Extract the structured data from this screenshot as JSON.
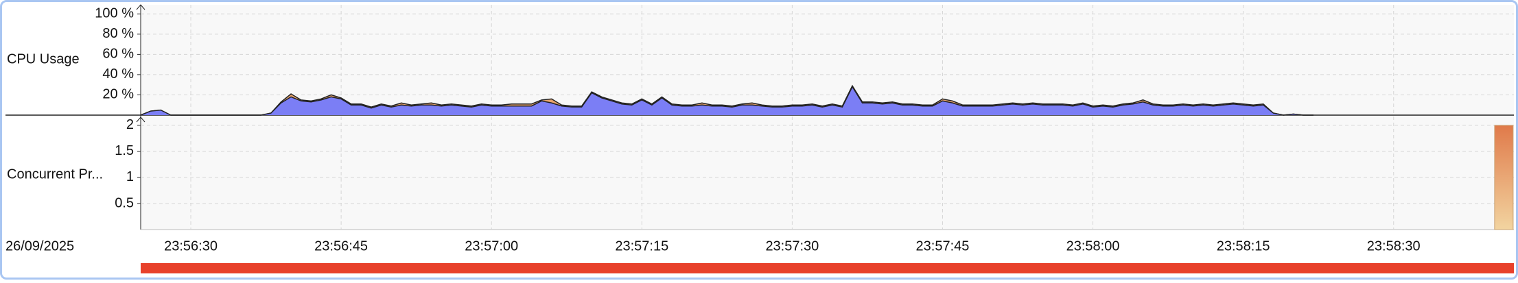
{
  "chart_data": [
    {
      "type": "area",
      "ylabel": "CPU Usage",
      "stacked": true,
      "grid": true,
      "x": [
        "23:56:25",
        "23:56:26",
        "23:56:27",
        "23:56:28",
        "23:56:29",
        "23:56:30",
        "23:56:31",
        "23:56:32",
        "23:56:33",
        "23:56:34",
        "23:56:35",
        "23:56:36",
        "23:56:37",
        "23:56:38",
        "23:56:39",
        "23:56:40",
        "23:56:41",
        "23:56:42",
        "23:56:43",
        "23:56:44",
        "23:56:45",
        "23:56:46",
        "23:56:47",
        "23:56:48",
        "23:56:49",
        "23:56:50",
        "23:56:51",
        "23:56:52",
        "23:56:53",
        "23:56:54",
        "23:56:55",
        "23:56:56",
        "23:56:57",
        "23:56:58",
        "23:56:59",
        "23:57:00",
        "23:57:01",
        "23:57:02",
        "23:57:03",
        "23:57:04",
        "23:57:05",
        "23:57:06",
        "23:57:07",
        "23:57:08",
        "23:57:09",
        "23:57:10",
        "23:57:11",
        "23:57:12",
        "23:57:13",
        "23:57:14",
        "23:57:15",
        "23:57:16",
        "23:57:17",
        "23:57:18",
        "23:57:19",
        "23:57:20",
        "23:57:21",
        "23:57:22",
        "23:57:23",
        "23:57:24",
        "23:57:25",
        "23:57:26",
        "23:57:27",
        "23:57:28",
        "23:57:29",
        "23:57:30",
        "23:57:31",
        "23:57:32",
        "23:57:33",
        "23:57:34",
        "23:57:35",
        "23:57:36",
        "23:57:37",
        "23:57:38",
        "23:57:39",
        "23:57:40",
        "23:57:41",
        "23:57:42",
        "23:57:43",
        "23:57:44",
        "23:57:45",
        "23:57:46",
        "23:57:47",
        "23:57:48",
        "23:57:49",
        "23:57:50",
        "23:57:51",
        "23:57:52",
        "23:57:53",
        "23:57:54",
        "23:57:55",
        "23:57:56",
        "23:57:57",
        "23:57:58",
        "23:57:59",
        "23:58:00",
        "23:58:01",
        "23:58:02",
        "23:58:03",
        "23:58:04",
        "23:58:05",
        "23:58:06",
        "23:58:07",
        "23:58:08",
        "23:58:09",
        "23:58:10",
        "23:58:11",
        "23:58:12",
        "23:58:13",
        "23:58:14",
        "23:58:15",
        "23:58:16",
        "23:58:17",
        "23:58:18",
        "23:58:19",
        "23:58:20",
        "23:58:21",
        "23:58:22"
      ],
      "series": [
        {
          "color": "#7b7ef5",
          "values": [
            0,
            4,
            5,
            0,
            0,
            0,
            0,
            0,
            0,
            0,
            0,
            0,
            0,
            2,
            12,
            18,
            14,
            13,
            15,
            18,
            16,
            10,
            10,
            7,
            10,
            8,
            10,
            9,
            10,
            10,
            9,
            10,
            9,
            8,
            10,
            9,
            9,
            9,
            9,
            9,
            14,
            12,
            9,
            8,
            8,
            22,
            17,
            14,
            11,
            10,
            15,
            10,
            17,
            10,
            9,
            9,
            10,
            9,
            9,
            8,
            10,
            10,
            9,
            8,
            8,
            9,
            9,
            10,
            8,
            10,
            8,
            28,
            12,
            12,
            11,
            12,
            10,
            10,
            9,
            9,
            14,
            12,
            9,
            9,
            9,
            9,
            10,
            11,
            10,
            11,
            10,
            10,
            10,
            9,
            11,
            8,
            9,
            8,
            10,
            11,
            13,
            10,
            9,
            9,
            10,
            9,
            10,
            9,
            10,
            11,
            10,
            9,
            10,
            2,
            0,
            1,
            0,
            0
          ]
        },
        {
          "color": "#e8a46c",
          "values": [
            0,
            0,
            0,
            0,
            0,
            0,
            0,
            0,
            0,
            0,
            0,
            0,
            0,
            0,
            1,
            3,
            1,
            1,
            1,
            2,
            1,
            1,
            1,
            1,
            1,
            1,
            2,
            1,
            1,
            2,
            1,
            1,
            1,
            1,
            1,
            1,
            1,
            2,
            2,
            2,
            1,
            4,
            1,
            1,
            1,
            1,
            1,
            1,
            1,
            1,
            1,
            1,
            1,
            1,
            1,
            1,
            2,
            1,
            1,
            1,
            1,
            2,
            1,
            1,
            1,
            1,
            1,
            1,
            1,
            1,
            1,
            1,
            1,
            1,
            1,
            1,
            1,
            1,
            1,
            1,
            2,
            2,
            1,
            1,
            1,
            1,
            1,
            1,
            1,
            1,
            1,
            1,
            1,
            1,
            1,
            1,
            1,
            1,
            1,
            1,
            2,
            1,
            1,
            1,
            1,
            1,
            1,
            1,
            1,
            1,
            1,
            1,
            1,
            0,
            0,
            0,
            0,
            0
          ]
        }
      ],
      "xlim": [
        "23:56:25",
        "23:58:42"
      ],
      "xticks": [
        "23:56:30",
        "23:56:45",
        "23:57:00",
        "23:57:15",
        "23:57:30",
        "23:57:45",
        "23:58:00",
        "23:58:15",
        "23:58:30"
      ],
      "ylim": [
        0,
        109
      ],
      "yticks": [
        {
          "value": 20,
          "label": "20 %"
        },
        {
          "value": 40,
          "label": "40 %"
        },
        {
          "value": 60,
          "label": "60 %"
        },
        {
          "value": 80,
          "label": "80 %"
        },
        {
          "value": 100,
          "label": "100 %"
        }
      ]
    },
    {
      "type": "bar",
      "ylabel": "Concurrent Pr...",
      "xlabel": "26/09/2025",
      "grid": true,
      "x": [
        "23:58:41"
      ],
      "values": [
        2
      ],
      "color": "#e07a4a",
      "xlim": [
        "23:56:25",
        "23:58:42"
      ],
      "xticks": [
        "23:56:30",
        "23:56:45",
        "23:57:00",
        "23:57:15",
        "23:57:30",
        "23:57:45",
        "23:58:00",
        "23:58:15",
        "23:58:30"
      ],
      "ylim": [
        0,
        2.17
      ],
      "yticks": [
        0.5,
        1,
        1.5,
        2
      ]
    }
  ]
}
